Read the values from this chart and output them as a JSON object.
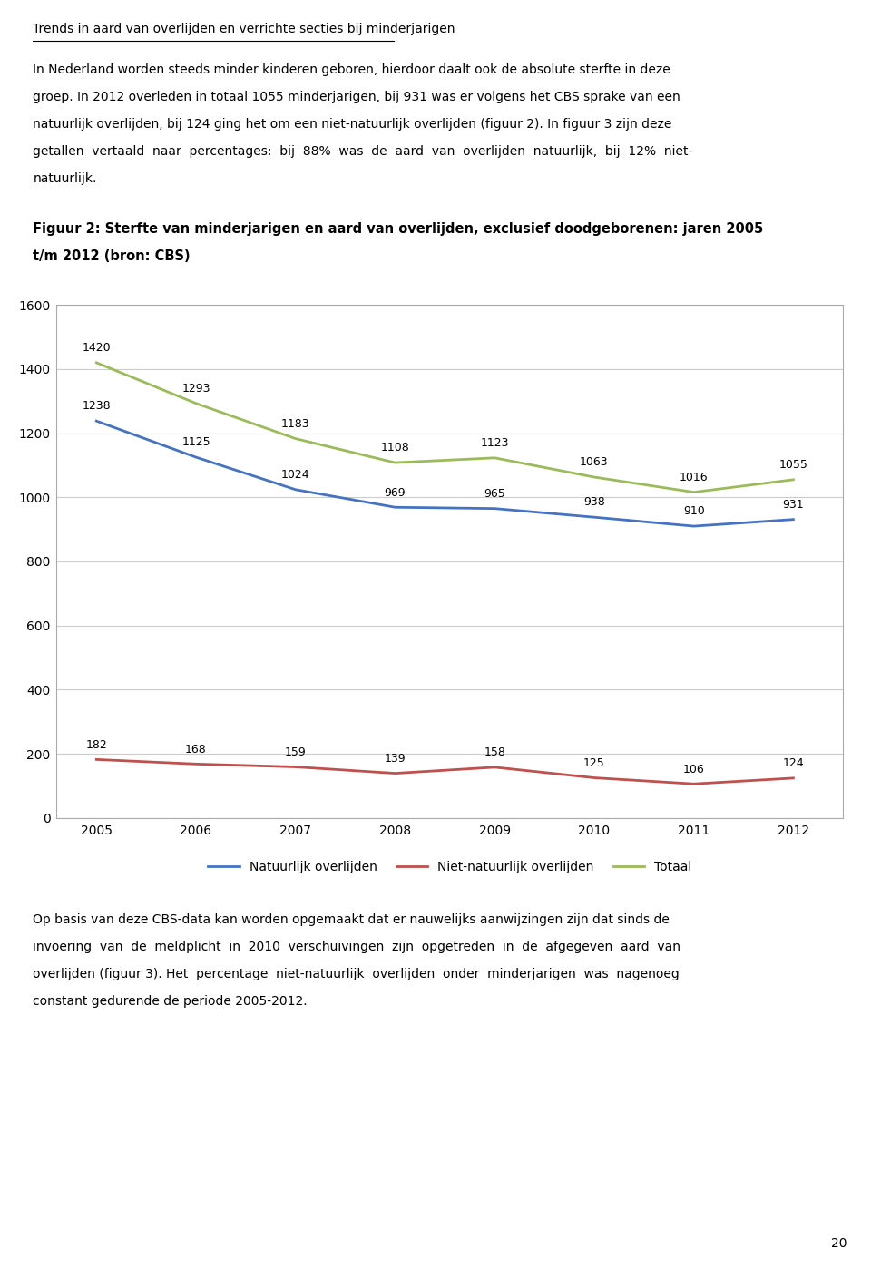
{
  "title_underline": "Trends in aard van overlijden en verrichte secties bij minderjarigen",
  "para1_lines": [
    "In Nederland worden steeds minder kinderen geboren, hierdoor daalt ook de absolute sterfte in deze",
    "groep. In 2012 overleden in totaal 1055 minderjarigen, bij 931 was er volgens het CBS sprake van een",
    "natuurlijk overlijden, bij 124 ging het om een niet-natuurlijk overlijden (figuur 2). In figuur 3 zijn deze",
    "getallen  vertaald  naar  percentages:  bij  88%  was  de  aard  van  overlijden  natuurlijk,  bij  12%  niet-",
    "natuurlijk."
  ],
  "fig_title_lines": [
    "Figuur 2: Sterfte van minderjarigen en aard van overlijden, exclusief doodgeborenen: jaren 2005",
    "t/m 2012 (bron: CBS)"
  ],
  "years": [
    2005,
    2006,
    2007,
    2008,
    2009,
    2010,
    2011,
    2012
  ],
  "natuurlijk": [
    1238,
    1125,
    1024,
    969,
    965,
    938,
    910,
    931
  ],
  "niet_natuurlijk": [
    182,
    168,
    159,
    139,
    158,
    125,
    106,
    124
  ],
  "totaal": [
    1420,
    1293,
    1183,
    1108,
    1123,
    1063,
    1016,
    1055
  ],
  "natuurlijk_color": "#4472C4",
  "niet_natuurlijk_color": "#C0504D",
  "totaal_color": "#9BBB59",
  "ylim": [
    0,
    1600
  ],
  "yticks": [
    0,
    200,
    400,
    600,
    800,
    1000,
    1200,
    1400,
    1600
  ],
  "legend_labels": [
    "Natuurlijk overlijden",
    "Niet-natuurlijk overlijden",
    "Totaal"
  ],
  "para2_lines": [
    "Op basis van deze CBS-data kan worden opgemaakt dat er nauwelijks aanwijzingen zijn dat sinds de",
    "invoering  van  de  meldplicht  in  2010  verschuivingen  zijn  opgetreden  in  de  afgegeven  aard  van",
    "overlijden (figuur 3). Het  percentage  niet-natuurlijk  overlijden  onder  minderjarigen  was  nagenoeg",
    "constant gedurende de periode 2005-2012."
  ],
  "page_number": "20",
  "bg_color": "#ffffff",
  "chart_bg": "#ffffff",
  "grid_color": "#cccccc",
  "border_color": "#aaaaaa"
}
